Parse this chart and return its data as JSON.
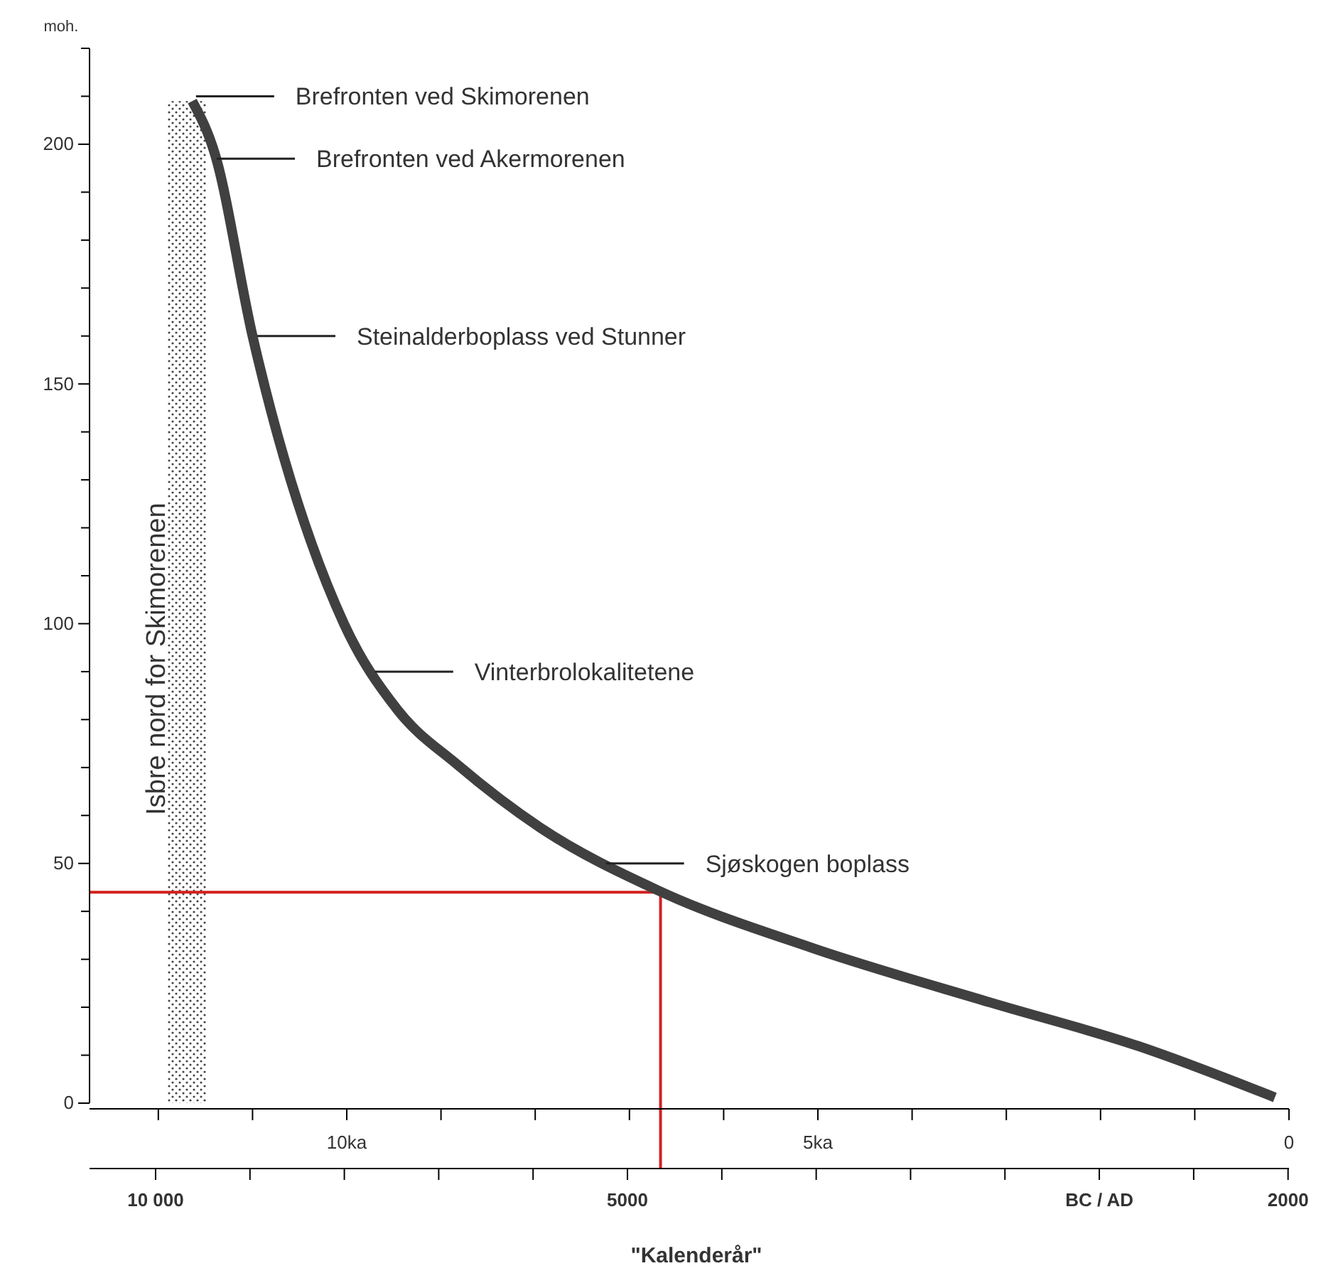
{
  "chart_data": {
    "type": "line",
    "ylabel": "moh.",
    "x2label": "\"Kalenderår\"",
    "xlim": [
      12.73,
      0
    ],
    "xticks": [
      {
        "value": 12,
        "label": null
      },
      {
        "value": 11,
        "label": null
      },
      {
        "value": 10,
        "label": "10ka"
      },
      {
        "value": 9,
        "label": null
      },
      {
        "value": 8,
        "label": null
      },
      {
        "value": 7,
        "label": null
      },
      {
        "value": 6,
        "label": null
      },
      {
        "value": 5,
        "label": "5ka"
      },
      {
        "value": 4,
        "label": null
      },
      {
        "value": 3,
        "label": null
      },
      {
        "value": 2,
        "label": null
      },
      {
        "value": 1,
        "label": null
      },
      0
    ],
    "x2lim": [
      -10700,
      2010
    ],
    "x2ticks": [
      {
        "value": -10000,
        "label": "10 000"
      },
      {
        "value": -9000,
        "label": null
      },
      {
        "value": -8000,
        "label": null
      },
      {
        "value": -7000,
        "label": null
      },
      {
        "value": -6000,
        "label": null
      },
      {
        "value": -5000,
        "label": "5000"
      },
      {
        "value": -4000,
        "label": null
      },
      {
        "value": -3000,
        "label": null
      },
      {
        "value": -2000,
        "label": null
      },
      {
        "value": -1000,
        "label": null
      },
      {
        "value": 0,
        "label": "BC / AD"
      },
      {
        "value": 1000,
        "label": null
      },
      2000
    ],
    "ylim": [
      0,
      220
    ],
    "yticks": [
      0,
      {
        "value": 10,
        "label": null
      },
      {
        "value": 20,
        "label": null
      },
      {
        "value": 30,
        "label": null
      },
      {
        "value": 40,
        "label": null
      },
      50,
      {
        "value": 60,
        "label": null
      },
      {
        "value": 70,
        "label": null
      },
      {
        "value": 80,
        "label": null
      },
      {
        "value": 90,
        "label": null
      },
      100,
      {
        "value": 110,
        "label": null
      },
      {
        "value": 120,
        "label": null
      },
      {
        "value": 130,
        "label": null
      },
      {
        "value": 140,
        "label": null
      },
      150,
      {
        "value": 160,
        "label": null
      },
      {
        "value": 170,
        "label": null
      },
      {
        "value": 180,
        "label": null
      },
      {
        "value": 190,
        "label": null
      },
      200,
      {
        "value": 210,
        "label": null
      },
      {
        "value": 220,
        "label": null
      }
    ],
    "grid": false,
    "marker": "none",
    "line_style": "solid",
    "series": [
      {
        "color": "#404040",
        "x": [
          11.64,
          11.4,
          11.0,
          10.03,
          9.46,
          8.82,
          7.95,
          6.7,
          5.05,
          3.17,
          1.6,
          0.15
        ],
        "values": [
          209,
          198,
          160,
          100,
          82,
          70.5,
          57.5,
          44.4,
          32.3,
          21,
          11.9,
          1.2
        ]
      }
    ],
    "bands": [
      {
        "axis": "x",
        "from": 11.9,
        "to": 11.49,
        "label": "Isbre nord for Skimorenen"
      }
    ],
    "ref_lines": [
      {
        "axis": "x",
        "value": 6.67,
        "color": "#d42020"
      },
      {
        "axis": "y",
        "value": 44,
        "color": "#d42020"
      }
    ],
    "annotations": [
      {
        "text": "Brefronten ved Skimorenen",
        "x": 11.6,
        "y": 210
      },
      {
        "text": "Brefronten ved Akermorenen",
        "x": 11.38,
        "y": 197
      },
      {
        "text": "Steinalderboplass ved Stunner",
        "x": 10.95,
        "y": 160
      },
      {
        "text": "Vinterbrolokalitetene",
        "x": 9.7,
        "y": 90
      },
      {
        "text": "Sjøskogen boplass",
        "x": 7.25,
        "y": 50
      }
    ]
  }
}
